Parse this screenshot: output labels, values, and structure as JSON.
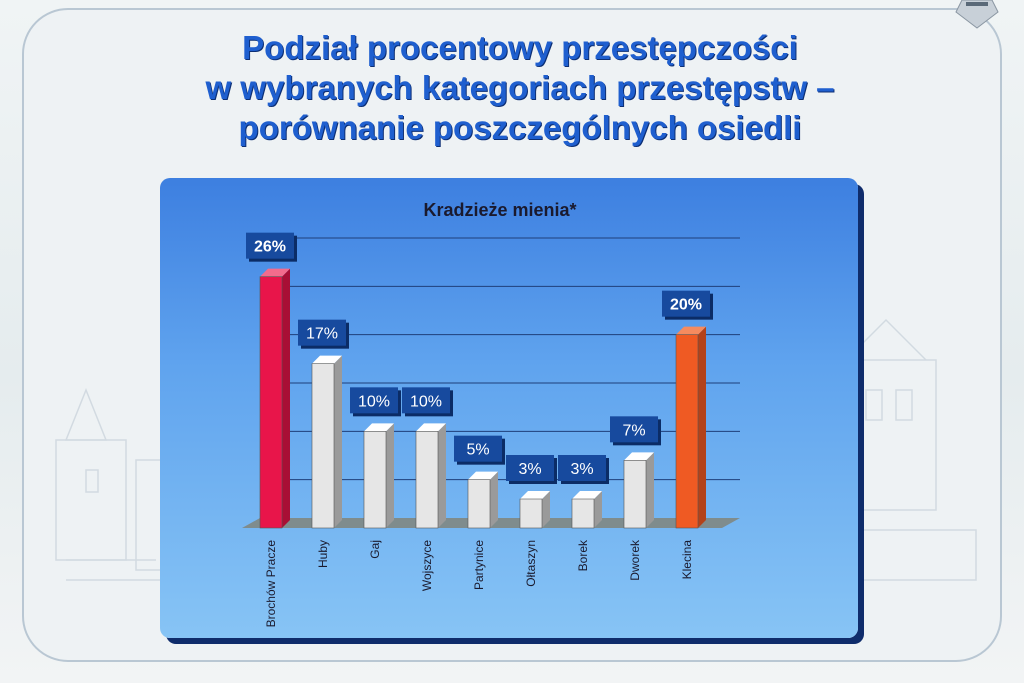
{
  "slide": {
    "title_lines": [
      "Podział procentowy przestępczości",
      "w wybranych kategoriach przestępstw –",
      "porównanie poszczególnych osiedli"
    ]
  },
  "colors": {
    "title": "#1f5fcf",
    "panel_top": "#3d7fe0",
    "panel_bottom": "#87c4f5",
    "label_box": "#174a9e",
    "bar_highlight": "#e8154a",
    "bar_default": "#e6e6e6",
    "bar_last": "#ef5a23"
  },
  "chart_data": {
    "type": "bar",
    "title": "Kradzieże mienia*",
    "categories": [
      "Brochów Pracze",
      "Huby",
      "Gaj",
      "Wojszyce",
      "Partynice",
      "Ołtaszyn",
      "Borek",
      "Dworek",
      "Klecina"
    ],
    "values": [
      26,
      17,
      10,
      10,
      5,
      3,
      3,
      7,
      20
    ],
    "value_labels": [
      "26%",
      "17%",
      "10%",
      "10%",
      "5%",
      "3%",
      "3%",
      "7%",
      "20%"
    ],
    "bar_colors": [
      "#e8154a",
      "#e6e6e6",
      "#e6e6e6",
      "#e6e6e6",
      "#e6e6e6",
      "#e6e6e6",
      "#e6e6e6",
      "#e6e6e6",
      "#ef5a23"
    ],
    "ylim": [
      0,
      30
    ],
    "grid": true,
    "legend": "none",
    "xlabel": "",
    "ylabel": ""
  }
}
